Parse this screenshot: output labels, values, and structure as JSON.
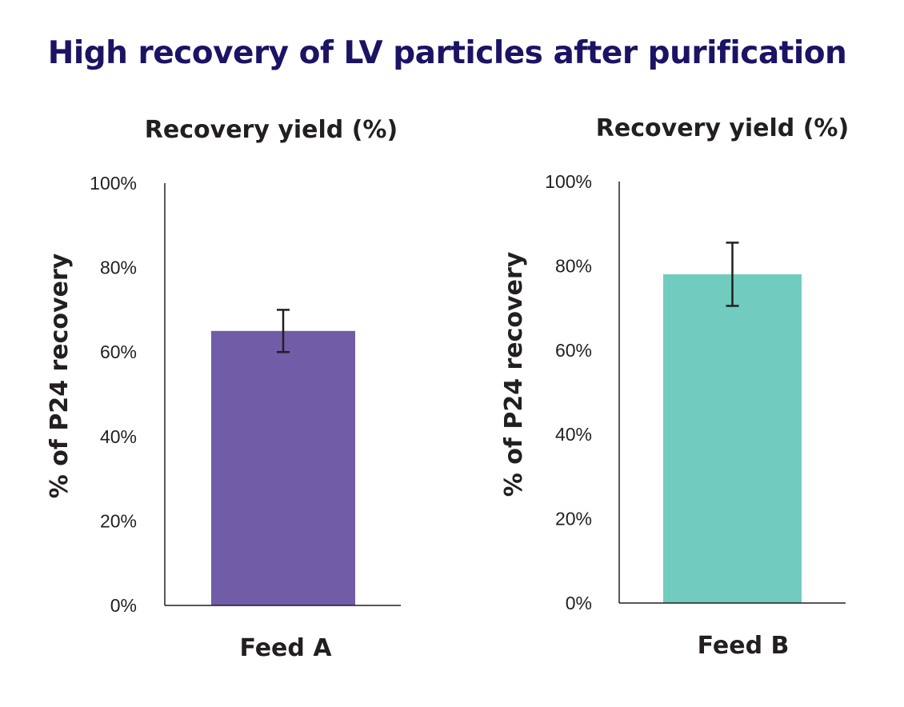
{
  "title": "High recovery of LV particles after purification",
  "colors": {
    "title": "#1b1464",
    "text": "#231f20",
    "bar_a": "#715ca8",
    "bar_b": "#71cbbf",
    "error_bar": "#231f20"
  },
  "chart_data": [
    {
      "type": "bar",
      "title": "Recovery yield (%)",
      "ylabel": "% of P24 recovery",
      "xlabel": "",
      "ylim": [
        0,
        100
      ],
      "yticks": [
        "0%",
        "20%",
        "40%",
        "60%",
        "80%",
        "100%"
      ],
      "grid": false,
      "categories": [
        "Feed A"
      ],
      "values": [
        65
      ],
      "error": [
        [
          60,
          70
        ]
      ],
      "color": "#715ca8"
    },
    {
      "type": "bar",
      "title": "Recovery yield (%)",
      "ylabel": "% of P24 recovery",
      "xlabel": "",
      "ylim": [
        0,
        100
      ],
      "yticks": [
        "0%",
        "20%",
        "40%",
        "60%",
        "80%",
        "100%"
      ],
      "grid": false,
      "categories": [
        "Feed B"
      ],
      "values": [
        78
      ],
      "error": [
        [
          70.5,
          85.5
        ]
      ],
      "color": "#71cbbf"
    }
  ]
}
